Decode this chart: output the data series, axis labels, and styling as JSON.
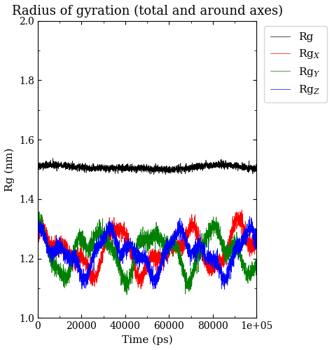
{
  "title": "Radius of gyration (total and around axes)",
  "xlabel": "Time (ps)",
  "ylabel": "Rg (nm)",
  "xlim": [
    0,
    100000
  ],
  "ylim": [
    1.0,
    2.0
  ],
  "xticks": [
    0,
    20000,
    40000,
    60000,
    80000,
    100000
  ],
  "yticks": [
    1.0,
    1.2,
    1.4,
    1.6,
    1.8,
    2.0
  ],
  "colors": [
    "black",
    "red",
    "green",
    "blue"
  ],
  "n_points": 3000,
  "rg_mean": 1.505,
  "title_fontsize": 13,
  "label_fontsize": 11,
  "tick_fontsize": 10,
  "legend_fontsize": 11,
  "background_color": "#ffffff",
  "seed": 42
}
